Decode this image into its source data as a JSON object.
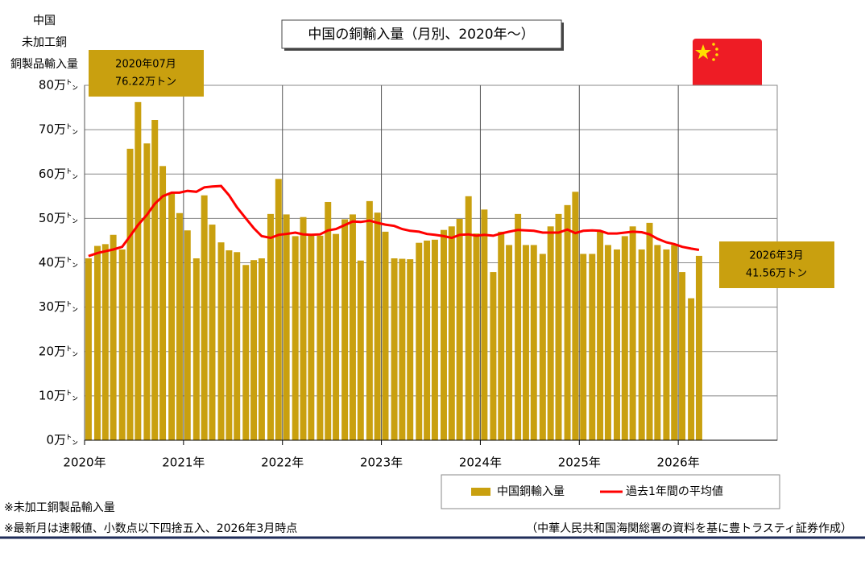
{
  "chart_data": {
    "type": "bar",
    "title": "中国の銅輸入量（月別、2020年～）",
    "ylabel": [
      "中国",
      "未加工銅",
      "銅製品輸入量"
    ],
    "x": [
      2020.04,
      2020.13,
      2020.21,
      2020.29,
      2020.38,
      2020.46,
      2020.54,
      2020.63,
      2020.71,
      2020.79,
      2020.88,
      2020.96,
      2021.04,
      2021.13,
      2021.21,
      2021.29,
      2021.38,
      2021.46,
      2021.54,
      2021.63,
      2021.71,
      2021.79,
      2021.88,
      2021.96,
      2022.04,
      2022.13,
      2022.21,
      2022.29,
      2022.38,
      2022.46,
      2022.54,
      2022.63,
      2022.71,
      2022.79,
      2022.88,
      2022.96,
      2023.04,
      2023.13,
      2023.21,
      2023.29,
      2023.38,
      2023.46,
      2023.54,
      2023.63,
      2023.71,
      2023.79,
      2023.88,
      2023.96,
      2024.04,
      2024.13,
      2024.21,
      2024.29,
      2024.38,
      2024.46,
      2024.54,
      2024.63,
      2024.71,
      2024.79,
      2024.88,
      2024.96,
      2025.04,
      2025.13,
      2025.21,
      2025.29,
      2025.38,
      2025.46,
      2025.54,
      2025.63,
      2025.71,
      2025.79,
      2025.88,
      2025.96,
      2026.04,
      2026.13,
      2026.21
    ],
    "series": [
      {
        "name": "中国銅輸入量",
        "type": "bar",
        "color": "#c9a00f",
        "values": [
          41,
          43.8,
          44.2,
          46.3,
          43,
          65.7,
          76.22,
          66.9,
          72.2,
          61.8,
          55.6,
          51.2,
          47.3,
          41,
          55.2,
          48.6,
          44.6,
          42.8,
          42.4,
          39.5,
          40.6,
          41,
          51,
          58.9,
          50.9,
          46,
          50.3,
          46.5,
          46.1,
          53.7,
          46.5,
          49.8,
          50.9,
          40.5,
          53.9,
          51.3,
          47,
          41,
          40.9,
          40.8,
          44.5,
          45,
          45.2,
          47.4,
          48.2,
          49.9,
          55,
          46.6,
          52,
          37.9,
          47,
          44,
          51,
          44,
          44,
          42,
          48.2,
          51,
          53,
          56,
          42,
          42,
          47,
          44,
          43,
          46,
          48.2,
          43,
          49,
          44,
          43,
          44,
          37.9,
          32,
          41.56
        ]
      },
      {
        "name": "過去1年間の平均値",
        "type": "line",
        "color": "#ff0000",
        "values": [
          41.5,
          42.2,
          42.6,
          43,
          43.6,
          46,
          48.5,
          50.8,
          53.3,
          55,
          55.8,
          55.8,
          56.2,
          56,
          57,
          57.2,
          57.3,
          55.2,
          52.5,
          50,
          47.8,
          46,
          45.6,
          46.3,
          46.5,
          46.8,
          46.4,
          46.3,
          46.4,
          47.3,
          47.6,
          48.5,
          49.3,
          49.2,
          49.5,
          49,
          48.6,
          48.3,
          47.6,
          47.2,
          47,
          46.5,
          46.3,
          46,
          45.6,
          46.3,
          46.4,
          46.1,
          46.3,
          46.1,
          46.6,
          47,
          47.4,
          47.3,
          47.2,
          46.8,
          46.8,
          46.8,
          47.5,
          46.7,
          47.2,
          47.3,
          47.2,
          46.6,
          46.6,
          46.8,
          47,
          46.9,
          46.4,
          45.4,
          44.6,
          44.2,
          43.6,
          43.2,
          42.9
        ]
      }
    ],
    "xlim": [
      2020,
      2027
    ],
    "xticks": [
      {
        "value": 2020,
        "label": "2020年"
      },
      {
        "value": 2021,
        "label": "2021年"
      },
      {
        "value": 2022,
        "label": "2022年"
      },
      {
        "value": 2023,
        "label": "2023年"
      },
      {
        "value": 2024,
        "label": "2024年"
      },
      {
        "value": 2025,
        "label": "2025年"
      },
      {
        "value": 2026,
        "label": "2026年"
      }
    ],
    "ylim": [
      0,
      80
    ],
    "yticks": [
      {
        "value": 0,
        "label": "0万㌧"
      },
      {
        "value": 10,
        "label": "10万㌧"
      },
      {
        "value": 20,
        "label": "20万㌧"
      },
      {
        "value": 30,
        "label": "30万㌧"
      },
      {
        "value": 40,
        "label": "40万㌧"
      },
      {
        "value": 50,
        "label": "50万㌧"
      },
      {
        "value": 60,
        "label": "60万㌧"
      },
      {
        "value": 70,
        "label": "70万㌧"
      },
      {
        "value": 80,
        "label": "80万㌧"
      }
    ],
    "grid": true,
    "annotations": [
      {
        "lines": [
          "2020年07月",
          "76.22万トン"
        ]
      },
      {
        "lines": [
          "2026年3月",
          "41.56万トン"
        ]
      }
    ],
    "notes": [
      "※未加工銅製品輸入量",
      "※最新月は速報値、小数点以下四捨五入、2026年3月時点"
    ],
    "source": "（中華人民共和国海関総署の資料を基に豊トラスティ証券作成）"
  }
}
